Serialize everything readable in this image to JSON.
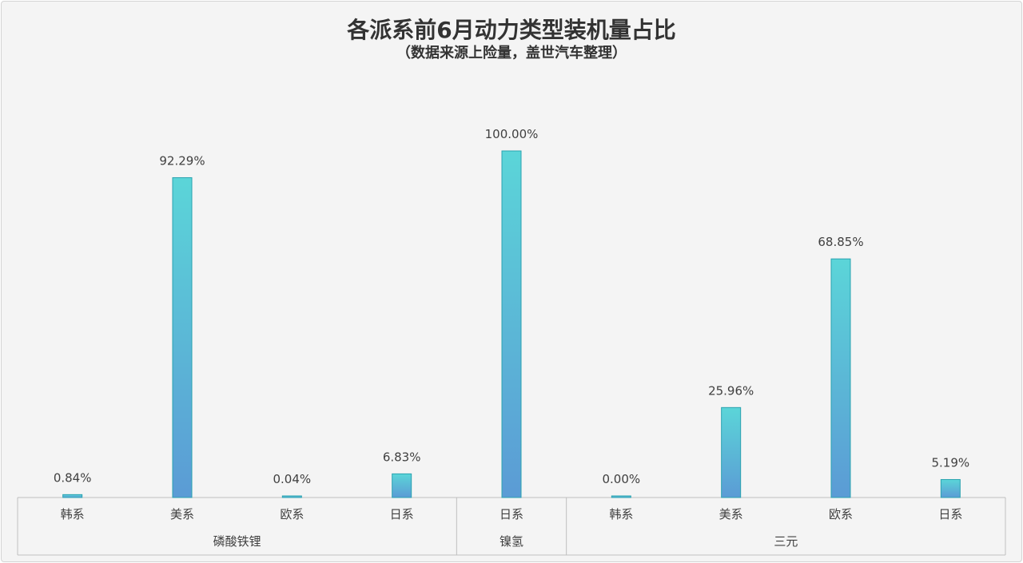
{
  "chart_data": {
    "type": "bar",
    "title": "各派系前6月动力类型装机量占比",
    "subtitle": "（数据来源上险量，盖世汽车整理）",
    "groups": [
      {
        "name": "磷酸铁锂",
        "categories": [
          "韩系",
          "美系",
          "欧系",
          "日系"
        ],
        "values": [
          0.84,
          92.29,
          0.04,
          6.83
        ],
        "labels": [
          "0.84%",
          "92.29%",
          "0.04%",
          "6.83%"
        ]
      },
      {
        "name": "镍氢",
        "categories": [
          "日系"
        ],
        "values": [
          100.0
        ],
        "labels": [
          "100.00%"
        ]
      },
      {
        "name": "三元",
        "categories": [
          "韩系",
          "美系",
          "欧系",
          "日系"
        ],
        "values": [
          0.0,
          25.96,
          68.85,
          5.19
        ],
        "labels": [
          "0.00%",
          "25.96%",
          "68.85%",
          "5.19%"
        ]
      }
    ],
    "unit": "%",
    "ylim": [
      0,
      100
    ],
    "grid": false,
    "legend": "none",
    "colors": {
      "bar_top": "#5bd5d8",
      "bar_bottom": "#5b9bd5",
      "bar_edge": "#2aa3b0",
      "axis": "#bfbfbf"
    }
  }
}
